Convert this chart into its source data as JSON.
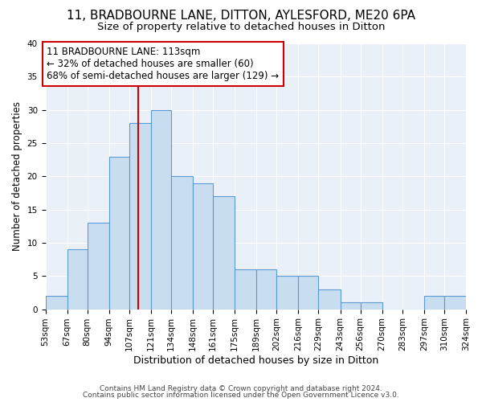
{
  "title1": "11, BRADBOURNE LANE, DITTON, AYLESFORD, ME20 6PA",
  "title2": "Size of property relative to detached houses in Ditton",
  "xlabel": "Distribution of detached houses by size in Ditton",
  "ylabel": "Number of detached properties",
  "bin_edges": [
    53,
    67,
    80,
    94,
    107,
    121,
    134,
    148,
    161,
    175,
    189,
    202,
    216,
    229,
    243,
    256,
    270,
    283,
    297,
    310,
    324
  ],
  "bar_heights": [
    2,
    9,
    13,
    23,
    28,
    30,
    20,
    19,
    17,
    6,
    6,
    5,
    5,
    3,
    1,
    1,
    0,
    0,
    2,
    2
  ],
  "bar_color": "#c9ddf0",
  "bar_edgecolor": "#5b9bd5",
  "vline_x": 113,
  "vline_color": "#cc0000",
  "annotation_line1": "11 BRADBOURNE LANE: 113sqm",
  "annotation_line2": "← 32% of detached houses are smaller (60)",
  "annotation_line3": "68% of semi-detached houses are larger (129) →",
  "annotation_box_edgecolor": "#cc0000",
  "annotation_box_facecolor": "#ffffff",
  "ylim": [
    0,
    40
  ],
  "yticks": [
    0,
    5,
    10,
    15,
    20,
    25,
    30,
    35,
    40
  ],
  "bg_color": "#eaf0f8",
  "fig_bg_color": "#ffffff",
  "footnote1": "Contains HM Land Registry data © Crown copyright and database right 2024.",
  "footnote2": "Contains public sector information licensed under the Open Government Licence v3.0.",
  "title1_fontsize": 11,
  "title2_fontsize": 9.5,
  "xlabel_fontsize": 9,
  "ylabel_fontsize": 8.5,
  "annotation_fontsize": 8.5,
  "tick_fontsize": 7.5,
  "footnote_fontsize": 6.5
}
